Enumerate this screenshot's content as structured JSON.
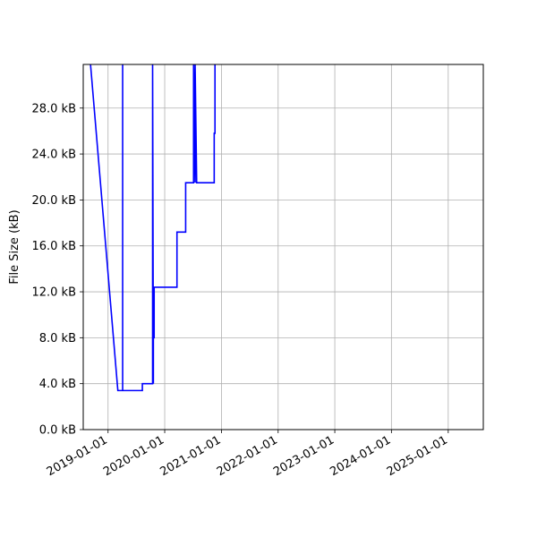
{
  "chart_data": {
    "type": "line",
    "title": "",
    "xlabel": "",
    "ylabel": "File Size (kB)",
    "grid": true,
    "x_ticks": [
      "2019-01-01",
      "2020-01-01",
      "2021-01-01",
      "2022-01-01",
      "2023-01-01",
      "2024-01-01",
      "2025-01-01"
    ],
    "y_ticks": [
      0,
      4,
      8,
      12,
      16,
      20,
      24,
      28
    ],
    "y_tick_labels": [
      "0.0 kB",
      "4.0 kB",
      "8.0 kB",
      "12.0 kB",
      "16.0 kB",
      "20.0 kB",
      "24.0 kB",
      "28.0 kB"
    ],
    "xlim": [
      "2018-07-25",
      "2025-08-15"
    ],
    "ylim": [
      0,
      31.8
    ],
    "series": [
      {
        "name": "",
        "color": "#0000ff",
        "points": [
          [
            "2018-09-10",
            31.8
          ],
          [
            "2019-03-05",
            3.4
          ],
          [
            "2019-04-05",
            3.4
          ],
          [
            "2019-04-05",
            31.8
          ],
          [
            "2019-04-05",
            3.4
          ],
          [
            "2019-08-10",
            3.4
          ],
          [
            "2019-08-10",
            4.0
          ],
          [
            "2019-10-15",
            4.0
          ],
          [
            "2019-10-15",
            31.8
          ],
          [
            "2019-10-20",
            4.0
          ],
          [
            "2019-10-20",
            8.0
          ],
          [
            "2019-10-25",
            8.0
          ],
          [
            "2019-10-25",
            12.4
          ],
          [
            "2020-03-20",
            12.4
          ],
          [
            "2020-03-20",
            17.2
          ],
          [
            "2020-05-15",
            17.2
          ],
          [
            "2020-05-15",
            21.5
          ],
          [
            "2020-07-05",
            21.5
          ],
          [
            "2020-07-05",
            31.8
          ],
          [
            "2020-07-15",
            21.5
          ],
          [
            "2020-07-15",
            31.8
          ],
          [
            "2020-07-25",
            21.5
          ],
          [
            "2020-11-15",
            21.5
          ],
          [
            "2020-11-15",
            25.8
          ],
          [
            "2020-11-20",
            25.8
          ],
          [
            "2020-11-20",
            31.8
          ]
        ]
      }
    ]
  }
}
